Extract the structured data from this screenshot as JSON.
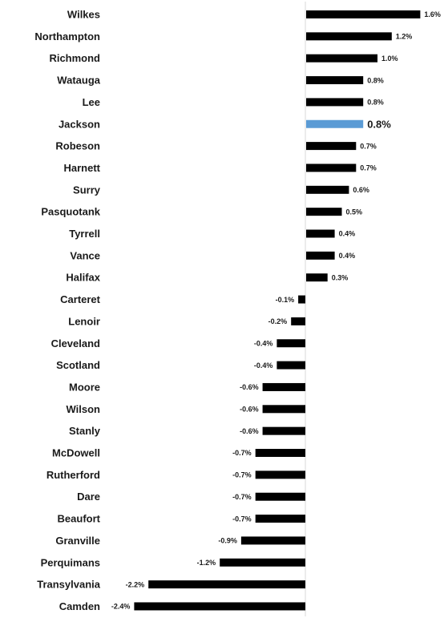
{
  "chart_data": {
    "type": "bar",
    "orientation": "horizontal",
    "categories": [
      "Wilkes",
      "Northampton",
      "Richmond",
      "Watauga",
      "Lee",
      "Jackson",
      "Robeson",
      "Harnett",
      "Surry",
      "Pasquotank",
      "Tyrrell",
      "Vance",
      "Halifax",
      "Carteret",
      "Lenoir",
      "Cleveland",
      "Scotland",
      "Moore",
      "Wilson",
      "Stanly",
      "McDowell",
      "Rutherford",
      "Dare",
      "Beaufort",
      "Granville",
      "Perquimans",
      "Transylvania",
      "Camden"
    ],
    "values": [
      1.6,
      1.2,
      1.0,
      0.8,
      0.8,
      0.8,
      0.7,
      0.7,
      0.6,
      0.5,
      0.4,
      0.4,
      0.3,
      -0.1,
      -0.2,
      -0.4,
      -0.4,
      -0.6,
      -0.6,
      -0.6,
      -0.7,
      -0.7,
      -0.7,
      -0.7,
      -0.9,
      -1.2,
      -2.2,
      -2.4
    ],
    "labels": [
      "1.6%",
      "1.2%",
      "1.0%",
      "0.8%",
      "0.8%",
      "0.8%",
      "0.7%",
      "0.7%",
      "0.6%",
      "0.5%",
      "0.4%",
      "0.4%",
      "0.3%",
      "-0.1%",
      "-0.2%",
      "-0.4%",
      "-0.4%",
      "-0.6%",
      "-0.6%",
      "-0.6%",
      "-0.7%",
      "-0.7%",
      "-0.7%",
      "-0.7%",
      "-0.9%",
      "-1.2%",
      "-2.2%",
      "-2.4%"
    ],
    "highlight": "Jackson",
    "title": "",
    "xlabel": "",
    "ylabel": "",
    "xlim": [
      -2.65,
      1.75
    ],
    "grid": false,
    "legend": "none"
  },
  "colors": {
    "bar": "#000000",
    "highlight": "#5b9bd5",
    "axis": "#d9d9d9",
    "text": "#1a1a1a"
  }
}
